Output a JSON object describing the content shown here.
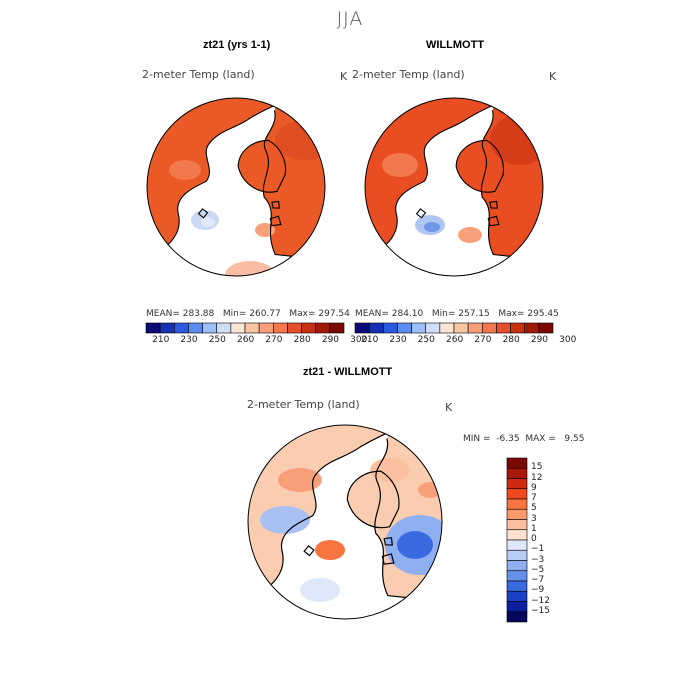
{
  "figure": {
    "title": "JJA",
    "panels": [
      {
        "heading": "zt21 (yrs 1-1)",
        "subtitle": "2-meter Temp (land)",
        "units": "K",
        "stats": {
          "mean_label": "MEAN=",
          "mean": "283.88",
          "min_label": "Min=",
          "min": "260.77",
          "max_label": "Max=",
          "max": "297.54"
        }
      },
      {
        "heading": "WILLMOTT",
        "subtitle": "2-meter Temp (land)",
        "units": "K",
        "stats": {
          "mean_label": "MEAN=",
          "mean": "284.10",
          "min_label": "Min=",
          "min": "257.15",
          "max_label": "Max=",
          "max": "295.45"
        }
      }
    ],
    "colorbar_abs": {
      "colors": [
        "#0a0a78",
        "#1530b4",
        "#2a5ae0",
        "#5a8cf0",
        "#9ebef7",
        "#cfdef8",
        "#fce4d4",
        "#fbc4a4",
        "#f8a07a",
        "#f2784e",
        "#e3502a",
        "#c83012",
        "#a01a0a",
        "#7a0a05"
      ],
      "labels": [
        "210",
        "230",
        "250",
        "260",
        "270",
        "280",
        "290",
        "300"
      ]
    },
    "diff_panel": {
      "heading": "zt21 - WILLMOTT",
      "subtitle": "2-meter Temp (land)",
      "units": "K",
      "min_label": "MIN =",
      "min": "-6.35",
      "max_label": "MAX =",
      "max": "9.55",
      "colorbar": {
        "colors": [
          "#7a0a05",
          "#a8180a",
          "#d02a10",
          "#ee4a1e",
          "#f7743e",
          "#fa9a6a",
          "#fcc0a0",
          "#fde2d0",
          "#dfe8f8",
          "#b8cdf5",
          "#8eb0f0",
          "#6490ea",
          "#3a6ae0",
          "#1a40c8",
          "#0a20a0",
          "#05085a"
        ],
        "labels": [
          "15",
          "12",
          "9",
          "7",
          "5",
          "3",
          "1",
          "0",
          "−1",
          "−3",
          "−5",
          "−7",
          "−9",
          "−12",
          "−15"
        ]
      }
    }
  }
}
